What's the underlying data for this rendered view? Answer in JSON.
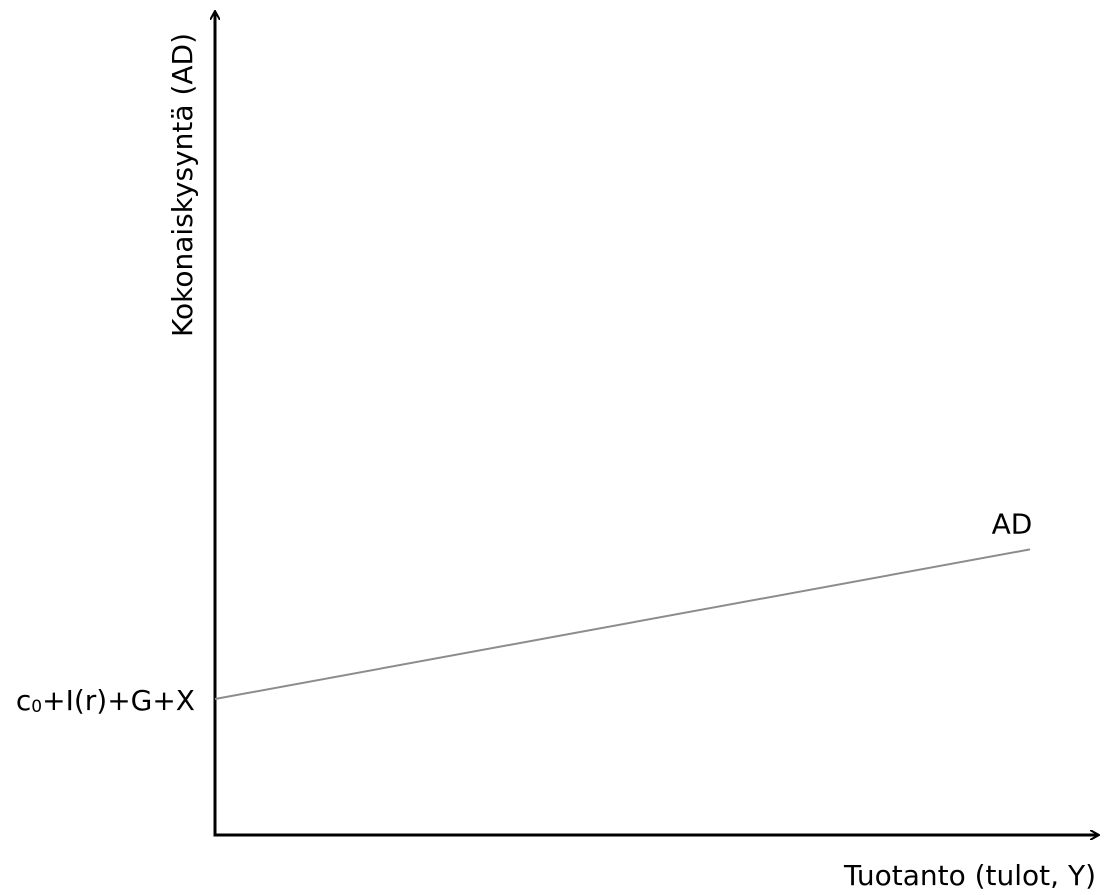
{
  "chart_data": {
    "type": "line",
    "title": "",
    "xlabel": "Tuotanto (tulot, Y)",
    "ylabel": "Kokonaiskysyntä (AD)",
    "intercept_label": {
      "main": "c",
      "subscript": "0",
      "rest": "+I(r)+G+X"
    },
    "series": [
      {
        "name": "AD",
        "x": [
          0,
          1
        ],
        "y": [
          0.4,
          0.84
        ]
      }
    ],
    "xlim": [
      0,
      1.07
    ],
    "ylim": [
      0,
      1.22
    ],
    "grid": false,
    "colors": {
      "axes": "#000000",
      "line": "#8c8c8c",
      "text": "#000000"
    }
  }
}
